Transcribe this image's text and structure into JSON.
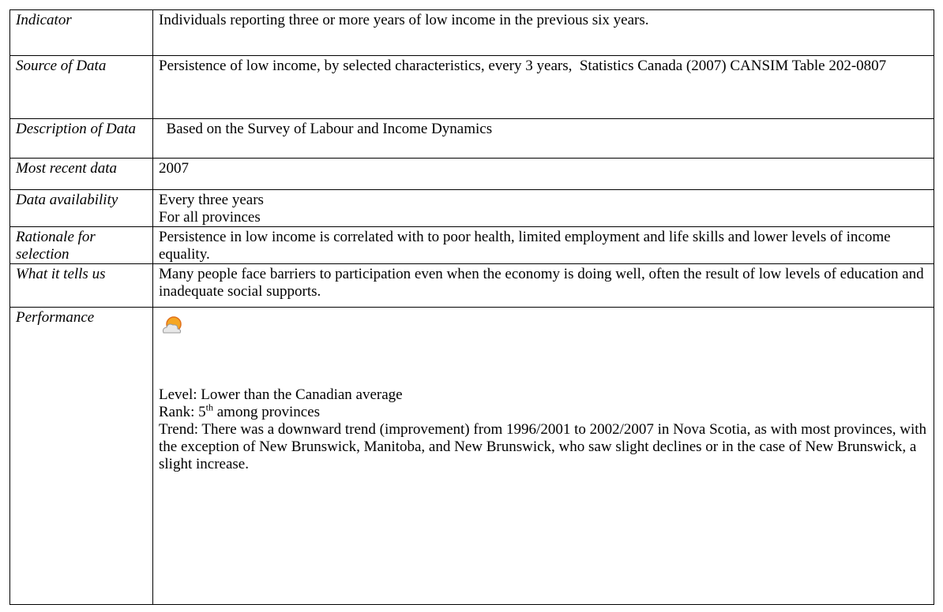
{
  "rows": [
    {
      "label": "Indicator",
      "lines": [
        "Individuals reporting three or more years of low income in the previous six years."
      ]
    },
    {
      "label": "Source of Data",
      "lines": [
        "Persistence of low income, by selected characteristics, every 3 years,  Statistics Canada (2007) CANSIM Table 202-0807"
      ]
    },
    {
      "label": "Description of Data",
      "lines": [
        "  Based on the Survey of Labour and Income Dynamics"
      ]
    },
    {
      "label": "Most recent data",
      "lines": [
        "2007"
      ]
    },
    {
      "label": "Data availability",
      "lines": [
        "Every three years",
        "For all provinces"
      ]
    },
    {
      "label": "Rationale for selection",
      "lines": [
        "Persistence in low income is correlated with to poor health, limited employment and life skills and lower levels of income equality."
      ]
    },
    {
      "label": "What it tells us",
      "lines": [
        "Many people face barriers to participation even when the economy is doing well, often the result of low levels of education and inadequate social supports."
      ]
    }
  ],
  "performance": {
    "label": "Performance",
    "level": "Level: Lower than the Canadian average",
    "rank": {
      "prefix": "Rank: 5",
      "sup": "th",
      "suffix": " among provinces"
    },
    "trend": "Trend: There was a downward trend (improvement) from 1996/2001 to 2002/2007 in Nova Scotia, as with most provinces, with the exception of New Brunswick, Manitoba, and New Brunswick, who saw slight declines or in the case of New Brunswick, a slight increase."
  }
}
